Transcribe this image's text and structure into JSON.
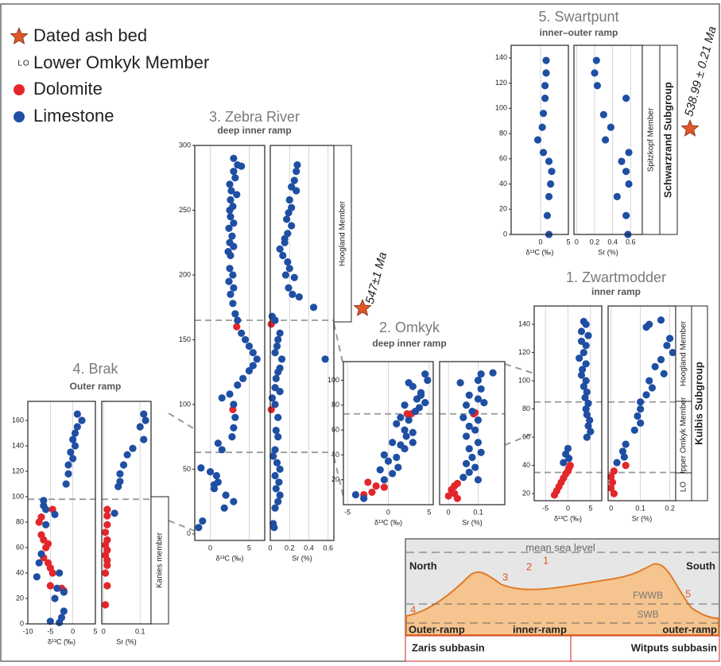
{
  "legend": [
    {
      "label": "Dated ash bed"
    },
    {
      "label": "Lower Omkyk Member",
      "symbol": "LO"
    }
  ],
  "star_color": "#e0582a",
  "sections": [
    {
      "title": "1. Zwartmodder",
      "subtitle": "inner ramp",
      "members": [
        "Hoogland Member",
        "Upper Omkyk Member",
        "LO"
      ],
      "subgroup": "Kuibis Subgroup"
    },
    {
      "title": "2. Omkyk",
      "subtitle": "deep inner ramp"
    },
    {
      "title": "3. Zebra River",
      "subtitle": "deep inner ramp",
      "members": [
        "Hoogland Member"
      ],
      "age": "547±1 Ma"
    },
    {
      "title": "4. Brak",
      "subtitle": "Outer ramp",
      "members": [
        "Kanies member"
      ]
    },
    {
      "title": "5. Swartpunt",
      "subtitle": "inner–outer ramp",
      "members": [
        "Spitzkopf Member"
      ],
      "subgroup": "Schwarzrand Subgroup",
      "age": "538.99 ± 0.21 Ma"
    }
  ],
  "diagram": {
    "sea_level": "mean sea level",
    "north": "North",
    "south": "South",
    "fwwb": "FWWB",
    "swb": "SWB",
    "sites": [
      "1",
      "2",
      "3",
      "4",
      "5"
    ],
    "ramps": [
      "Outer-ramp",
      "inner-ramp",
      "outer-ramp"
    ],
    "basins": [
      "Zaris subbasin",
      "Witputs subbasin"
    ]
  },
  "chart_data": [
    {
      "type": "scatter",
      "xlabel": "δ¹³C (‰)",
      "xlim": [
        -7.5,
        7.5
      ],
      "xticks": [
        -5,
        0,
        5
      ],
      "ylim": [
        15,
        153
      ],
      "yticks": [
        20,
        40,
        60,
        80,
        100,
        120,
        140
      ],
      "grid": true,
      "hlines": [
        85,
        35
      ],
      "series": [
        {
          "name": "Dolomite",
          "color": "#e3262b",
          "x": [
            0.5,
            0.2,
            0,
            -0.5,
            -1,
            -1.5,
            -2,
            -2.5,
            -3
          ],
          "y": [
            40,
            38,
            36,
            34,
            31,
            28,
            25,
            22,
            19
          ]
        },
        {
          "name": "Limestone",
          "color": "#1f4fa3",
          "x": [
            3.5,
            4,
            3,
            4.5,
            3,
            4,
            3.5,
            2.5,
            4,
            3.2,
            3,
            4,
            3.5,
            4.2,
            3.8,
            4.5,
            4,
            4.2,
            4.8,
            4.5,
            5,
            4.2,
            0,
            -0.5,
            0.2,
            -1
          ],
          "y": [
            142,
            140,
            135,
            132,
            128,
            125,
            120,
            116,
            112,
            108,
            104,
            100,
            96,
            92,
            88,
            84,
            80,
            76,
            72,
            68,
            64,
            60,
            52,
            48,
            45,
            42
          ]
        }
      ]
    },
    {
      "type": "scatter",
      "xlabel": "Sr (%)",
      "xlim": [
        -0.01,
        0.22
      ],
      "xticks": [
        0,
        0.1,
        0.2
      ],
      "ylim": [
        15,
        153
      ],
      "grid": true,
      "hlines": [
        85,
        35
      ],
      "series": [
        {
          "name": "Dolomite",
          "color": "#e3262b",
          "x": [
            0.05,
            0.01,
            0,
            0.005,
            0,
            0.01
          ],
          "y": [
            40,
            36,
            32,
            28,
            24,
            20
          ]
        },
        {
          "name": "Limestone",
          "color": "#1f4fa3",
          "x": [
            0.17,
            0.13,
            0.12,
            0.2,
            0.19,
            0.21,
            0.17,
            0.15,
            0.18,
            0.13,
            0.14,
            0.12,
            0.1,
            0.1,
            0.09,
            0.1,
            0.08,
            0.05,
            0.04,
            0.045,
            0.02
          ],
          "y": [
            143,
            140,
            138,
            130,
            125,
            120,
            115,
            110,
            105,
            100,
            95,
            90,
            85,
            80,
            75,
            70,
            65,
            55,
            50,
            46,
            42
          ]
        }
      ]
    },
    {
      "type": "scatter",
      "xlabel": "δ¹³C (‰)",
      "xlim": [
        -5.5,
        5.5
      ],
      "xticks": [
        -5,
        0,
        5
      ],
      "ylim": [
        0,
        115
      ],
      "yticks": [
        20,
        40,
        60,
        80,
        100
      ],
      "grid": true,
      "hlines": [
        73
      ],
      "series": [
        {
          "name": "Dolomite",
          "color": "#e3262b",
          "x": [
            -2.5,
            -1.5,
            -0.5,
            -2,
            -3,
            2.3,
            2.8
          ],
          "y": [
            18,
            15,
            14,
            10,
            8,
            73,
            73
          ]
        },
        {
          "name": "Limestone",
          "color": "#1f4fa3",
          "x": [
            4.5,
            4.8,
            2.5,
            3,
            4,
            3.5,
            4.5,
            2,
            3.8,
            1.5,
            2.5,
            1,
            2,
            3,
            2.2,
            0.5,
            1.5,
            2,
            -0.5,
            1,
            0,
            1.2,
            -1,
            0.5,
            -0.5,
            -4,
            -3,
            3.3,
            3,
            4
          ],
          "y": [
            105,
            100,
            98,
            95,
            90,
            85,
            82,
            80,
            78,
            70,
            68,
            65,
            60,
            58,
            55,
            50,
            48,
            45,
            40,
            38,
            35,
            30,
            28,
            25,
            20,
            8,
            5,
            75,
            50,
            88
          ]
        }
      ]
    },
    {
      "type": "scatter",
      "xlabel": "Sr (%)",
      "xlim": [
        -0.03,
        0.19
      ],
      "xticks": [
        0,
        0.1
      ],
      "ylim": [
        0,
        115
      ],
      "grid": true,
      "hlines": [
        73
      ],
      "series": [
        {
          "name": "Dolomite",
          "color": "#e3262b",
          "x": [
            0.03,
            0.02,
            0.01,
            0.02,
            0,
            0.03,
            0.09,
            0.085
          ],
          "y": [
            17,
            15,
            12,
            9,
            7,
            5,
            74,
            73
          ]
        },
        {
          "name": "Limestone",
          "color": "#1f4fa3",
          "x": [
            0.15,
            0.11,
            0.1,
            0.04,
            0.11,
            0.07,
            0.1,
            0.12,
            0.06,
            0.08,
            0.05,
            0.1,
            0.07,
            0.09,
            0.06,
            0.1,
            0.07,
            0.11,
            0.08,
            0.06,
            0.09,
            0.07,
            0.05,
            0.1
          ],
          "y": [
            106,
            105,
            100,
            98,
            93,
            88,
            85,
            82,
            80,
            75,
            70,
            68,
            63,
            60,
            55,
            50,
            45,
            42,
            38,
            33,
            30,
            26,
            22,
            20
          ]
        }
      ]
    },
    {
      "type": "scatter",
      "xlabel": "δ¹³C (‰)",
      "xlim": [
        -2,
        7
      ],
      "xticks": [
        0,
        5
      ],
      "ylim": [
        -5,
        300
      ],
      "yticks": [
        0,
        50,
        100,
        150,
        200,
        250,
        300
      ],
      "grid": true,
      "hlines": [
        165,
        63
      ],
      "series": [
        {
          "name": "Dolomite",
          "color": "#e3262b",
          "x": [
            3.4,
            2.9
          ],
          "y": [
            160,
            96
          ]
        },
        {
          "name": "Limestone",
          "color": "#1f4fa3",
          "x": [
            3,
            3.5,
            4,
            3,
            3.2,
            2.5,
            2.7,
            3.4,
            2.6,
            2.9,
            2.5,
            2.6,
            3,
            2.4,
            2.8,
            2.5,
            3,
            2.3,
            2.6,
            2.5,
            2.9,
            2.4,
            3,
            2.6,
            2.9,
            3.2,
            3.5,
            4,
            4.5,
            5,
            5.5,
            6,
            5.5,
            5,
            4.2,
            3.5,
            2.5,
            1.5,
            3,
            3.2,
            3,
            2.8,
            1,
            1.5,
            0,
            -1.2,
            0.8,
            1,
            0.5,
            2,
            3,
            1.8,
            0.5,
            -1,
            -1.5
          ],
          "y": [
            290,
            285,
            284,
            280,
            275,
            270,
            265,
            262,
            258,
            253,
            250,
            245,
            240,
            236,
            230,
            225,
            222,
            218,
            215,
            205,
            200,
            195,
            190,
            185,
            178,
            170,
            165,
            155,
            150,
            145,
            140,
            135,
            130,
            126,
            120,
            115,
            108,
            105,
            100,
            90,
            82,
            75,
            70,
            65,
            48,
            51,
            45,
            40,
            35,
            30,
            25,
            20,
            38,
            10,
            5
          ]
        }
      ]
    },
    {
      "type": "scatter",
      "xlabel": "Sr (%)",
      "xlim": [
        0,
        0.66
      ],
      "xticks": [
        0,
        0.2,
        0.4,
        0.6
      ],
      "ylim": [
        -5,
        300
      ],
      "grid": true,
      "hlines": [
        165,
        63
      ],
      "series": [
        {
          "name": "Dolomite",
          "color": "#e3262b",
          "x": [
            0.01,
            0.01
          ],
          "y": [
            162,
            96
          ]
        },
        {
          "name": "Limestone",
          "color": "#1f4fa3",
          "x": [
            0.28,
            0.27,
            0.25,
            0.22,
            0.27,
            0.2,
            0.22,
            0.19,
            0.17,
            0.22,
            0.18,
            0.15,
            0.1,
            0.13,
            0.15,
            0.18,
            0.2,
            0.16,
            0.25,
            0.19,
            0.3,
            0.45,
            0.23,
            0.02,
            0.05,
            0.1,
            0.08,
            0.07,
            0.05,
            0.12,
            0.57,
            0.1,
            0.08,
            0.06,
            0.05,
            0.1,
            0.02,
            0.05,
            0.08,
            0.06,
            0.08,
            0.05,
            0.03,
            0.07,
            0.1,
            0.05,
            0.09,
            0.06,
            0.1,
            0.08,
            0.05,
            0.03,
            0.04
          ],
          "y": [
            285,
            280,
            273,
            268,
            265,
            258,
            252,
            248,
            243,
            238,
            232,
            228,
            220,
            215,
            225,
            210,
            205,
            200,
            198,
            190,
            183,
            175,
            185,
            168,
            165,
            155,
            150,
            145,
            140,
            135,
            135,
            128,
            125,
            120,
            113,
            110,
            105,
            100,
            90,
            80,
            75,
            65,
            60,
            55,
            50,
            45,
            40,
            35,
            30,
            25,
            20,
            8,
            5
          ]
        }
      ]
    },
    {
      "type": "scatter",
      "xlabel": "δ¹³C (‰)",
      "xlim": [
        -10,
        5
      ],
      "xticks": [
        -10,
        -5,
        0,
        5
      ],
      "ylim": [
        0,
        175
      ],
      "yticks": [
        0,
        20,
        40,
        60,
        80,
        100,
        120,
        140,
        160
      ],
      "grid": true,
      "hlines": [
        98
      ],
      "series": [
        {
          "name": "Dolomite",
          "color": "#e3262b",
          "x": [
            -4.5,
            -7,
            -7.5,
            -7,
            -6.5,
            -5.5,
            -6,
            -6.5,
            -5.5,
            -5,
            -4.5,
            -5,
            -2.5,
            -2
          ],
          "y": [
            90,
            84,
            80,
            70,
            66,
            63,
            60,
            52,
            48,
            44,
            40,
            30,
            28,
            26
          ]
        },
        {
          "name": "Limestone",
          "color": "#1f4fa3",
          "x": [
            1,
            2,
            1,
            0.5,
            0,
            0.5,
            -0.5,
            0,
            -1,
            -1,
            -1.5,
            -6.5,
            -6.5,
            -6,
            -4,
            -3,
            -3.5,
            -2,
            -4,
            -2,
            -2.5,
            -5,
            -3,
            -7,
            -8,
            -6,
            -7.5
          ],
          "y": [
            165,
            160,
            155,
            150,
            145,
            140,
            135,
            130,
            125,
            118,
            110,
            97,
            93,
            90,
            86,
            40,
            28,
            25,
            20,
            10,
            5,
            2,
            1,
            55,
            37,
            78,
            48
          ]
        }
      ]
    },
    {
      "type": "scatter",
      "xlabel": "Sr (%)",
      "xlim": [
        -0.005,
        0.13
      ],
      "xticks": [
        0,
        0.1
      ],
      "ylim": [
        0,
        175
      ],
      "grid": true,
      "hlines": [
        98
      ],
      "series": [
        {
          "name": "Dolomite",
          "color": "#e3262b",
          "x": [
            0.01,
            0.01,
            0.01,
            0.005,
            0.01,
            0.005,
            0.01,
            0.005,
            0.01,
            0.01,
            0.005,
            0.01,
            0.005
          ],
          "y": [
            90,
            85,
            78,
            72,
            66,
            62,
            58,
            54,
            50,
            46,
            40,
            30,
            15
          ]
        },
        {
          "name": "Limestone",
          "color": "#1f4fa3",
          "x": [
            0.11,
            0.115,
            0.1,
            0.11,
            0.08,
            0.065,
            0.055,
            0.045,
            0.045,
            0.04,
            0.03
          ],
          "y": [
            165,
            160,
            155,
            145,
            138,
            133,
            125,
            118,
            112,
            108,
            87
          ]
        }
      ]
    },
    {
      "type": "scatter",
      "xlabel": "δ¹³C (‰)",
      "xlim": [
        -5.3,
        5
      ],
      "xticks": [
        0,
        5
      ],
      "ylim": [
        0,
        150
      ],
      "yticks": [
        0,
        20,
        40,
        60,
        80,
        100,
        120,
        140
      ],
      "grid": true,
      "series": [
        {
          "name": "Limestone",
          "color": "#1f4fa3",
          "x": [
            1,
            1,
            0.8,
            0.8,
            0.5,
            0.3,
            -0.5,
            0.5,
            1.5,
            2,
            1.8,
            1.5,
            1.2,
            1.5
          ],
          "y": [
            138,
            128,
            118,
            108,
            96,
            85,
            75,
            65,
            58,
            50,
            40,
            30,
            15,
            0
          ]
        }
      ]
    },
    {
      "type": "scatter",
      "xlabel": "Sr (%)",
      "xlim": [
        -0.03,
        0.73
      ],
      "xticks": [
        0,
        0.2,
        0.4,
        0.6
      ],
      "ylim": [
        0,
        150
      ],
      "grid": true,
      "series": [
        {
          "name": "Limestone",
          "color": "#1f4fa3",
          "x": [
            0.22,
            0.2,
            0.23,
            0.55,
            0.3,
            0.38,
            0.32,
            0.58,
            0.5,
            0.55,
            0.58,
            0.45,
            0.55,
            0.57
          ],
          "y": [
            138,
            128,
            118,
            108,
            95,
            85,
            75,
            65,
            58,
            50,
            40,
            30,
            15,
            0
          ]
        }
      ]
    }
  ]
}
